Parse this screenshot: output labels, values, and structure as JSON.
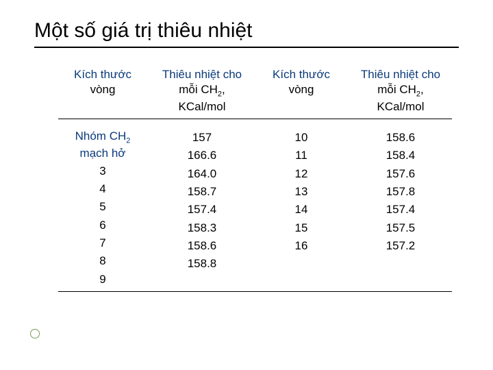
{
  "title": "Một số giá trị thiêu nhiệt",
  "colors": {
    "text": "#000000",
    "accent_blue": "#0a3a7a",
    "bullet_border": "#7a9a5a",
    "background": "#ffffff",
    "rule": "#000000"
  },
  "typography": {
    "title_fontsize_pt": 22,
    "header_fontsize_pt": 13,
    "body_fontsize_pt": 13,
    "font_family": "Arial"
  },
  "table": {
    "headers": {
      "c1_line1": "Kích thước",
      "c1_line2": "vòng",
      "c2_line1": "Thiêu nhiệt cho",
      "c2_line2a": "mỗi CH",
      "c2_line2b": ",",
      "c2_sub": "2",
      "c2_line3": "KCal/mol",
      "c3_line1": "Kích thước",
      "c3_line2": "vòng",
      "c4_line1": "Thiêu nhiệt cho",
      "c4_line2a": "mỗi CH",
      "c4_line2b": ",",
      "c4_sub": "2",
      "c4_line3": "KCal/mol"
    },
    "group_label_line1": "Nhóm CH",
    "group_label_sub": "2",
    "group_label_line2": "mạch hở",
    "col1": [
      "3",
      "4",
      "5",
      "6",
      "7",
      "8",
      "9"
    ],
    "col2": [
      "157",
      "166.6",
      "164.0",
      "158.7",
      "157.4",
      "158.3",
      "158.6",
      "158.8"
    ],
    "col3": [
      "10",
      "11",
      "12",
      "13",
      "14",
      "15",
      "16"
    ],
    "col4": [
      "158.6",
      "158.4",
      "157.6",
      "157.8",
      "157.4",
      "157.5",
      "157.2"
    ]
  }
}
